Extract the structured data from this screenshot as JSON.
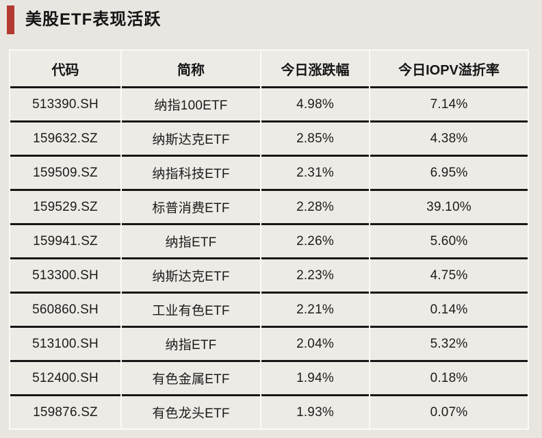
{
  "title": {
    "text": "美股ETF表现活跃"
  },
  "colors": {
    "accent": "#b23a31",
    "page_background": "#e9e6e1",
    "cell_background": "#edebe6",
    "row_separator": "#161616",
    "column_separator": "#fbfaf7"
  },
  "chart_data": {
    "type": "table",
    "title": "美股ETF表现活跃",
    "columns": [
      "代码",
      "简称",
      "今日涨跌幅",
      "今日IOPV溢折率"
    ],
    "rows": [
      [
        "513390.SH",
        "纳指100ETF",
        "4.98%",
        "7.14%"
      ],
      [
        "159632.SZ",
        "纳斯达克ETF",
        "2.85%",
        "4.38%"
      ],
      [
        "159509.SZ",
        "纳指科技ETF",
        "2.31%",
        "6.95%"
      ],
      [
        "159529.SZ",
        "标普消费ETF",
        "2.28%",
        "39.10%"
      ],
      [
        "159941.SZ",
        "纳指ETF",
        "2.26%",
        "5.60%"
      ],
      [
        "513300.SH",
        "纳斯达克ETF",
        "2.23%",
        "4.75%"
      ],
      [
        "560860.SH",
        "工业有色ETF",
        "2.21%",
        "0.14%"
      ],
      [
        "513100.SH",
        "纳指ETF",
        "2.04%",
        "5.32%"
      ],
      [
        "512400.SH",
        "有色金属ETF",
        "1.94%",
        "0.18%"
      ],
      [
        "159876.SZ",
        "有色龙头ETF",
        "1.93%",
        "0.07%"
      ]
    ]
  }
}
